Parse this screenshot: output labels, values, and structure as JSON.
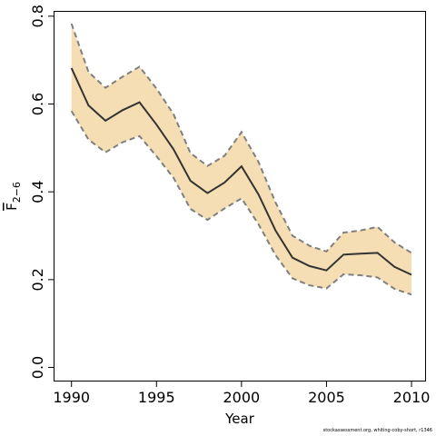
{
  "chart_data": {
    "type": "line",
    "xlabel": "Year",
    "ylabel": "F",
    "ylabel_subscript": "2−6",
    "xlim": [
      1989,
      2010.8
    ],
    "ylim": [
      -0.03,
      0.81
    ],
    "x_ticks": [
      1990,
      1995,
      2000,
      2005,
      2010
    ],
    "x_tick_labels": [
      "1990",
      "1995",
      "2000",
      "2005",
      "2010"
    ],
    "y_ticks": [
      0.0,
      0.2,
      0.4,
      0.6,
      0.8
    ],
    "y_tick_labels": [
      "0.0",
      "0.2",
      "0.4",
      "0.6",
      "0.8"
    ],
    "grid": false,
    "colors": {
      "band": "#f5deb3",
      "line": "#333333",
      "bound": "#7f7f7f"
    },
    "years": [
      1990,
      1991,
      1992,
      1993,
      1994,
      1995,
      1996,
      1997,
      1998,
      1999,
      2000,
      2001,
      2002,
      2003,
      2004,
      2005,
      2006,
      2007,
      2008,
      2009,
      2010
    ],
    "estimate": [
      0.682,
      0.597,
      0.562,
      0.586,
      0.604,
      0.553,
      0.497,
      0.425,
      0.397,
      0.421,
      0.458,
      0.394,
      0.312,
      0.25,
      0.231,
      0.221,
      0.257,
      0.259,
      0.261,
      0.229,
      0.211
    ],
    "upper": [
      0.783,
      0.673,
      0.637,
      0.662,
      0.685,
      0.635,
      0.577,
      0.488,
      0.459,
      0.482,
      0.536,
      0.468,
      0.376,
      0.3,
      0.277,
      0.264,
      0.307,
      0.312,
      0.32,
      0.285,
      0.261
    ],
    "lower": [
      0.584,
      0.519,
      0.49,
      0.513,
      0.527,
      0.481,
      0.432,
      0.361,
      0.336,
      0.362,
      0.385,
      0.326,
      0.256,
      0.203,
      0.187,
      0.18,
      0.212,
      0.21,
      0.205,
      0.179,
      0.166
    ]
  },
  "footer": {
    "note": "stockassessment.org, whiting-coby-short, r1346"
  }
}
